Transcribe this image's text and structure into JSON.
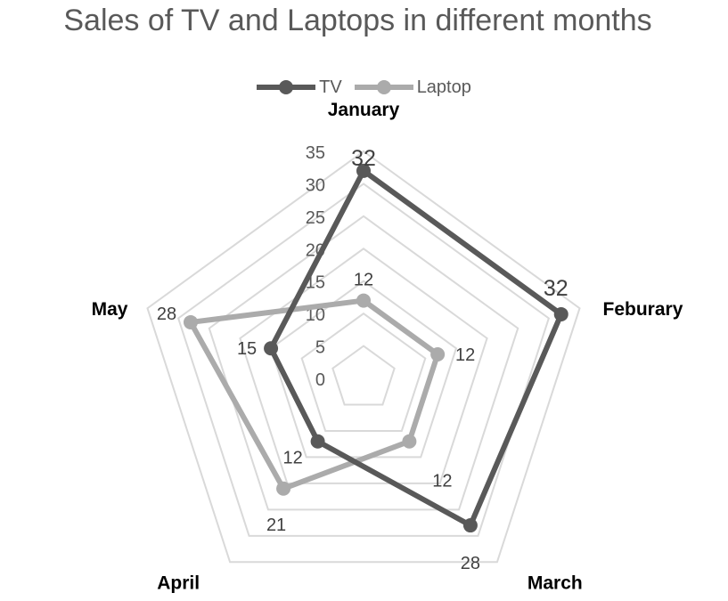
{
  "chart_data": {
    "type": "radar",
    "title": "Sales of TV and Laptops in different months",
    "categories": [
      "January",
      "Feburary",
      "March",
      "April",
      "May"
    ],
    "series": [
      {
        "name": "TV",
        "values": [
          32,
          32,
          28,
          12,
          15
        ],
        "color": "#595959"
      },
      {
        "name": "Laptop",
        "values": [
          12,
          12,
          12,
          21,
          28
        ],
        "color": "#ababab"
      }
    ],
    "rlim": [
      0,
      35
    ],
    "ticks": [
      0,
      5,
      10,
      15,
      20,
      25,
      30,
      35
    ],
    "grid": true,
    "legend_position": "top"
  }
}
